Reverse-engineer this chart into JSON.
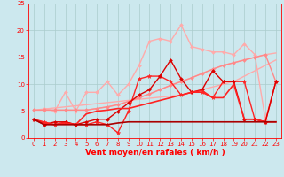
{
  "xlabel": "Vent moyen/en rafales ( km/h )",
  "bg_color": "#cce8ee",
  "grid_color": "#aacccc",
  "xlim": [
    -0.5,
    23.5
  ],
  "ylim": [
    0,
    25
  ],
  "yticks": [
    0,
    5,
    10,
    15,
    20,
    25
  ],
  "xticks": [
    0,
    1,
    2,
    3,
    4,
    5,
    6,
    7,
    8,
    9,
    10,
    11,
    12,
    13,
    14,
    15,
    16,
    17,
    18,
    19,
    20,
    21,
    22,
    23
  ],
  "lines": [
    {
      "x": [
        0,
        1,
        2,
        3,
        4,
        5,
        6,
        7,
        8,
        9,
        10,
        11,
        12,
        13,
        14,
        15,
        16,
        17,
        18,
        19,
        20,
        21,
        22,
        23
      ],
      "y": [
        5.2,
        5.4,
        5.6,
        5.8,
        6.0,
        6.2,
        6.4,
        6.6,
        6.8,
        7.0,
        7.2,
        7.4,
        7.6,
        7.8,
        8.0,
        8.5,
        9.0,
        9.5,
        10.0,
        10.5,
        11.5,
        12.5,
        13.5,
        14.5
      ],
      "color": "#ffaaaa",
      "lw": 1.0,
      "marker": null,
      "ms": 0
    },
    {
      "x": [
        1,
        2,
        3,
        4,
        5,
        6,
        7,
        8,
        9,
        10,
        11,
        12,
        13,
        14,
        15,
        16,
        17,
        18,
        19,
        20,
        21,
        22,
        23
      ],
      "y": [
        5.5,
        5.0,
        8.5,
        5.0,
        8.5,
        8.5,
        10.5,
        8.0,
        10.0,
        13.5,
        18.0,
        18.5,
        18.0,
        21.0,
        17.0,
        16.5,
        16.0,
        16.0,
        15.5,
        17.5,
        15.5,
        3.5,
        10.5
      ],
      "color": "#ffaaaa",
      "lw": 1.0,
      "marker": "D",
      "ms": 2.0
    },
    {
      "x": [
        0,
        1,
        2,
        3,
        4,
        5,
        6,
        7,
        8,
        9,
        10,
        11,
        12,
        13,
        14,
        15,
        16,
        17,
        18,
        19,
        20,
        21,
        22,
        23
      ],
      "y": [
        5.2,
        5.2,
        5.2,
        5.2,
        5.2,
        5.2,
        5.5,
        5.8,
        6.2,
        6.8,
        7.5,
        8.2,
        9.0,
        9.8,
        10.5,
        11.2,
        12.0,
        12.8,
        13.5,
        14.0,
        14.5,
        15.0,
        15.5,
        15.8
      ],
      "color": "#ffaaaa",
      "lw": 1.0,
      "marker": null,
      "ms": 0
    },
    {
      "x": [
        0,
        1,
        2,
        3,
        4,
        5,
        6,
        7,
        8,
        9,
        10,
        11,
        12,
        13,
        14,
        15,
        16,
        17,
        18,
        19,
        20,
        21,
        22,
        23
      ],
      "y": [
        5.2,
        5.2,
        5.2,
        5.2,
        5.2,
        5.2,
        5.5,
        5.8,
        6.2,
        6.8,
        7.5,
        8.2,
        9.0,
        9.8,
        10.5,
        11.2,
        12.0,
        12.8,
        13.5,
        14.0,
        14.5,
        15.0,
        15.5,
        10.5
      ],
      "color": "#ff8888",
      "lw": 1.0,
      "marker": "D",
      "ms": 2.0
    },
    {
      "x": [
        0,
        1,
        2,
        3,
        4,
        5,
        6,
        7,
        8,
        9,
        10,
        11,
        12,
        13,
        14,
        15,
        16,
        17,
        18,
        19,
        20,
        21,
        22,
        23
      ],
      "y": [
        3.5,
        3.0,
        2.5,
        3.0,
        2.5,
        2.5,
        3.0,
        2.5,
        1.0,
        5.0,
        11.0,
        11.5,
        11.5,
        10.5,
        8.0,
        8.5,
        8.5,
        7.5,
        10.5,
        10.5,
        10.5,
        3.5,
        3.0,
        10.5
      ],
      "color": "#ff2222",
      "lw": 1.0,
      "marker": "*",
      "ms": 3.5
    },
    {
      "x": [
        0,
        1,
        2,
        3,
        4,
        5,
        6,
        7,
        8,
        9,
        10,
        11,
        12,
        13,
        14,
        15,
        16,
        17,
        18,
        19,
        20,
        21,
        22,
        23
      ],
      "y": [
        3.5,
        2.5,
        3.0,
        3.0,
        2.5,
        3.0,
        3.5,
        3.5,
        5.0,
        6.5,
        8.0,
        9.0,
        11.5,
        14.5,
        11.0,
        8.5,
        9.0,
        12.5,
        10.5,
        10.5,
        3.5,
        3.5,
        3.0,
        10.5
      ],
      "color": "#dd0000",
      "lw": 1.0,
      "marker": "D",
      "ms": 2.0
    },
    {
      "x": [
        0,
        1,
        2,
        3,
        4,
        5,
        6,
        7,
        8,
        9,
        10,
        11,
        12,
        13,
        14,
        15,
        16,
        17,
        18,
        19,
        20,
        21,
        22,
        23
      ],
      "y": [
        3.5,
        2.8,
        2.5,
        2.8,
        2.5,
        4.5,
        5.0,
        5.2,
        5.5,
        5.5,
        6.0,
        6.5,
        7.0,
        7.5,
        8.0,
        8.5,
        8.8,
        7.5,
        7.5,
        10.0,
        3.5,
        3.5,
        3.0,
        3.0
      ],
      "color": "#ff2222",
      "lw": 1.2,
      "marker": null,
      "ms": 0
    },
    {
      "x": [
        0,
        1,
        2,
        3,
        4,
        5,
        6,
        7,
        8,
        9,
        10,
        11,
        12,
        13,
        14,
        15,
        16,
        17,
        18,
        19,
        20,
        21,
        22,
        23
      ],
      "y": [
        3.5,
        2.5,
        2.5,
        2.5,
        2.5,
        2.5,
        2.5,
        2.5,
        2.8,
        3.0,
        3.0,
        3.0,
        3.0,
        3.0,
        3.0,
        3.0,
        3.0,
        3.0,
        3.0,
        3.0,
        3.0,
        3.0,
        3.0,
        3.0
      ],
      "color": "#aa0000",
      "lw": 1.2,
      "marker": null,
      "ms": 0
    }
  ],
  "tick_color": "#ff0000",
  "label_color": "#ff0000",
  "tick_fontsize": 5.0,
  "xlabel_fontsize": 6.5,
  "ylabel_fontsize": 5.0
}
